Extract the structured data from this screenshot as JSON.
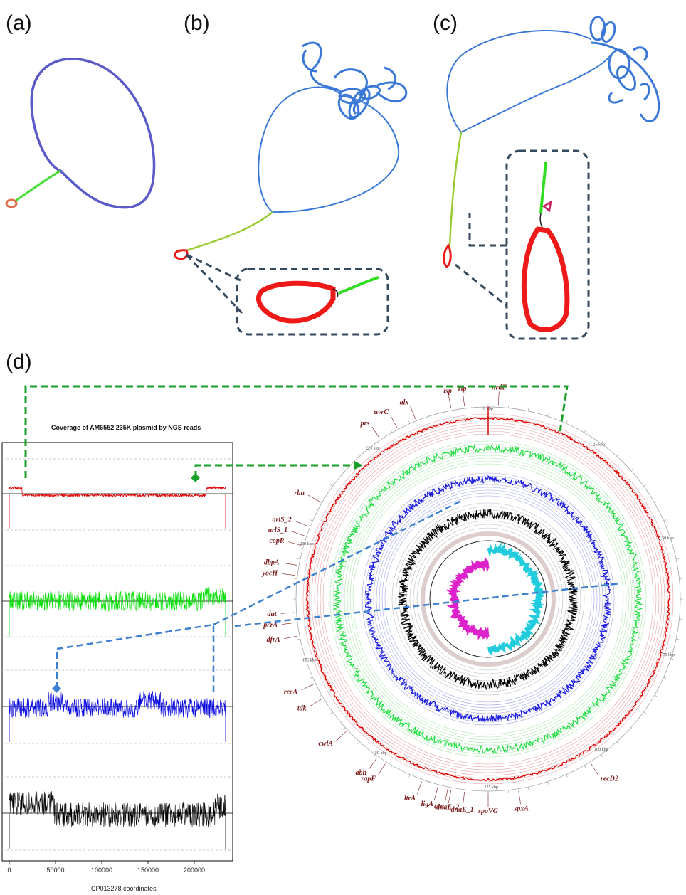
{
  "panels": {
    "a": "(a)",
    "b": "(b)",
    "c": "(c)",
    "d": "(d)"
  },
  "coverage": {
    "title": "Coverage of AM6552 235K plasmid by NGS reads",
    "xlabel": "CP013278 coordinates",
    "xticks": [
      "0",
      "50000",
      "100000",
      "150000",
      "200000"
    ],
    "tracks": [
      {
        "name": "red",
        "color": "#e00000"
      },
      {
        "name": "green",
        "color": "#00dd00"
      },
      {
        "name": "blue",
        "color": "#0000e0"
      },
      {
        "name": "black",
        "color": "#000000"
      }
    ]
  },
  "circular_map": {
    "kbp_labels": [
      "0 kbp",
      "25 kbp",
      "50 kbp",
      "75 kbp",
      "100 kbp",
      "125 kbp",
      "150 kbp",
      "175 kbp",
      "200 kbp",
      "225 kbp"
    ],
    "genes": [
      "nrdF",
      "rtp",
      "isp",
      "alx",
      "uvrC",
      "prs",
      "rbn",
      "arlS_2",
      "arlS_1",
      "copR",
      "dbpA",
      "yocH",
      "dut",
      "pcrA",
      "dfrA",
      "recA",
      "tdk",
      "cwlA",
      "abh",
      "rapF",
      "ltrA",
      "ligA",
      "dnaE_2",
      "dnaE_1",
      "spxA",
      "spoVG",
      "cca",
      "recD2"
    ]
  },
  "colors": {
    "graph_blue": "#3a78d8",
    "graph_purple": "#5a5ac8",
    "graph_red": "#ee1a1a",
    "graph_green": "#33dd22",
    "inset_border": "#34495e",
    "connector_green": "#1aa02a",
    "connector_blue": "#3d7fd0"
  }
}
